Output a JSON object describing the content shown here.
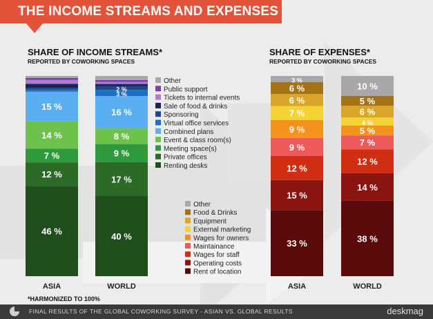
{
  "header": {
    "title": "THE INCOME STREAMS AND EXPENSES"
  },
  "footnote": "*HARMONIZED TO 100%",
  "footer": {
    "text": "FINAL RESULTS OF THE GLOBAL COWORKING SURVEY - ASIAN VS. GLOBAL RESULTS",
    "brand": "deskmag"
  },
  "colors": {
    "banner": "#e2533a",
    "background": "#ececec",
    "footer": "#3a3a3a"
  },
  "chart_data": [
    {
      "type": "bar",
      "stacked": true,
      "title": "SHARE OF INCOME STREAMS*",
      "subtitle": "REPORTED BY COWORKING SPACES",
      "categories": [
        "ASIA",
        "WORLD"
      ],
      "value_unit": "%",
      "legend_position": "right",
      "series": [
        {
          "name": "Renting desks",
          "color": "#1f4d1c",
          "values": [
            46,
            40
          ]
        },
        {
          "name": "Private offices",
          "color": "#2c6a28",
          "values": [
            12,
            17
          ]
        },
        {
          "name": "Meeting space(s)",
          "color": "#2f9a3b",
          "values": [
            7,
            9
          ]
        },
        {
          "name": "Event & class room(s)",
          "color": "#6cc24a",
          "values": [
            14,
            8
          ]
        },
        {
          "name": "Combined plans",
          "color": "#5aaef2",
          "values": [
            15,
            16
          ]
        },
        {
          "name": "Virtual office services",
          "color": "#1d6fc4",
          "values": [
            1,
            3
          ]
        },
        {
          "name": "Sponsoring",
          "color": "#1a4a8a",
          "values": [
            1,
            2
          ]
        },
        {
          "name": "Sale of food & drinks",
          "color": "#15284f",
          "values": [
            2,
            1
          ]
        },
        {
          "name": "Tickets to internal events",
          "color": "#b07ad9",
          "values": [
            2,
            1
          ]
        },
        {
          "name": "Public support",
          "color": "#7a3fae",
          "values": [
            1,
            1
          ]
        },
        {
          "name": "Other",
          "color": "#a8a8a8",
          "values": [
            1,
            2
          ]
        }
      ],
      "labels": [
        [
          "46 %",
          "12 %",
          "7 %",
          "14 %",
          "15 %",
          "",
          "",
          "",
          "",
          "",
          ""
        ],
        [
          "40 %",
          "17 %",
          "9 %",
          "8 %",
          "16 %",
          "3 %",
          "2 %",
          "",
          "",
          "",
          ""
        ]
      ],
      "ylim": [
        0,
        100
      ]
    },
    {
      "type": "bar",
      "stacked": true,
      "title": "SHARE OF EXPENSES*",
      "subtitle": "REPORTED BY COWORKING SPACES",
      "categories": [
        "ASIA",
        "WORLD"
      ],
      "value_unit": "%",
      "legend_position": "left",
      "series": [
        {
          "name": "Rent of location",
          "color": "#5a0a0a",
          "values": [
            33,
            38
          ]
        },
        {
          "name": "Operating costs",
          "color": "#8a1410",
          "values": [
            15,
            14
          ]
        },
        {
          "name": "Wages for staff",
          "color": "#cf2e12",
          "values": [
            12,
            12
          ]
        },
        {
          "name": "Maintainance",
          "color": "#ee5a5a",
          "values": [
            9,
            7
          ]
        },
        {
          "name": "Wages for owners",
          "color": "#f4921e",
          "values": [
            9,
            5
          ]
        },
        {
          "name": "External marketing",
          "color": "#f6d334",
          "values": [
            7,
            4
          ]
        },
        {
          "name": "Equipment",
          "color": "#d9a62a",
          "values": [
            6,
            6
          ]
        },
        {
          "name": "Food & Drinks",
          "color": "#a37315",
          "values": [
            6,
            5
          ]
        },
        {
          "name": "Other",
          "color": "#a8a8a8",
          "values": [
            3,
            10
          ]
        }
      ],
      "labels": [
        [
          "33 %",
          "15 %",
          "12 %",
          "9 %",
          "9 %",
          "7 %",
          "6 %",
          "6 %",
          "3 %"
        ],
        [
          "38 %",
          "14 %",
          "12 %",
          "7 %",
          "5 %",
          "4 %",
          "6 %",
          "5 %",
          "10 %"
        ]
      ],
      "ylim": [
        0,
        100
      ]
    }
  ]
}
